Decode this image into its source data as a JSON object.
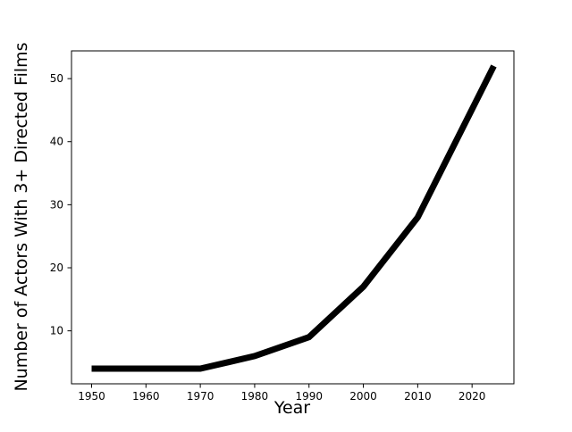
{
  "chart_data": {
    "type": "line",
    "title": "",
    "xlabel": "Year",
    "ylabel": "Number of Actors With 3+ Directed Films",
    "x": [
      1950,
      1960,
      1970,
      1980,
      1990,
      2000,
      2010,
      2024
    ],
    "y": [
      4,
      4,
      4,
      6,
      9,
      17,
      28,
      52
    ],
    "x_ticks": [
      1950,
      1960,
      1970,
      1980,
      1990,
      2000,
      2010,
      2020
    ],
    "y_ticks": [
      10,
      20,
      30,
      40,
      50
    ],
    "xlim": [
      1946.3,
      2027.7
    ],
    "ylim": [
      1.6,
      54.4
    ],
    "line_color": "#000000",
    "line_width": 7,
    "background_color": "#ffffff",
    "grid": false,
    "legend": null
  }
}
